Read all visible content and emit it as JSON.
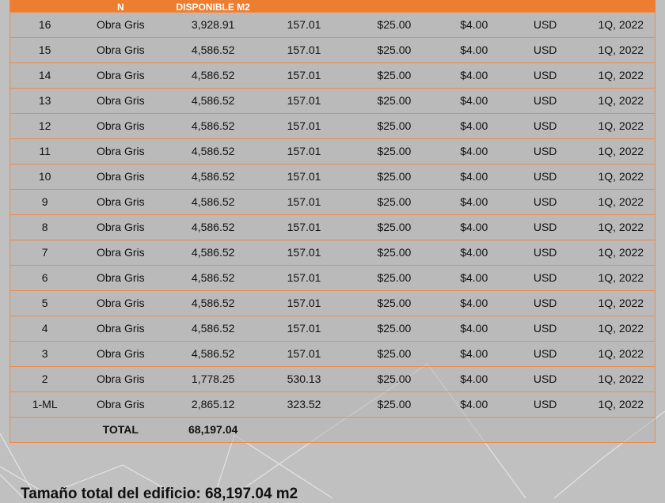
{
  "table": {
    "headers": [
      "",
      "N",
      "DISPONIBLE M2",
      "",
      "",
      "",
      "",
      ""
    ],
    "rows": [
      [
        "16",
        "Obra Gris",
        "3,928.91",
        "157.01",
        "$25.00",
        "$4.00",
        "USD",
        "1Q, 2022"
      ],
      [
        "15",
        "Obra Gris",
        "4,586.52",
        "157.01",
        "$25.00",
        "$4.00",
        "USD",
        "1Q, 2022"
      ],
      [
        "14",
        "Obra Gris",
        "4,586.52",
        "157.01",
        "$25.00",
        "$4.00",
        "USD",
        "1Q, 2022"
      ],
      [
        "13",
        "Obra Gris",
        "4,586.52",
        "157.01",
        "$25.00",
        "$4.00",
        "USD",
        "1Q, 2022"
      ],
      [
        "12",
        "Obra Gris",
        "4,586.52",
        "157.01",
        "$25.00",
        "$4.00",
        "USD",
        "1Q, 2022"
      ],
      [
        "11",
        "Obra Gris",
        "4,586.52",
        "157.01",
        "$25.00",
        "$4.00",
        "USD",
        "1Q, 2022"
      ],
      [
        "10",
        "Obra Gris",
        "4,586.52",
        "157.01",
        "$25.00",
        "$4.00",
        "USD",
        "1Q, 2022"
      ],
      [
        "9",
        "Obra Gris",
        "4,586.52",
        "157.01",
        "$25.00",
        "$4.00",
        "USD",
        "1Q, 2022"
      ],
      [
        "8",
        "Obra Gris",
        "4,586.52",
        "157.01",
        "$25.00",
        "$4.00",
        "USD",
        "1Q, 2022"
      ],
      [
        "7",
        "Obra Gris",
        "4,586.52",
        "157.01",
        "$25.00",
        "$4.00",
        "USD",
        "1Q, 2022"
      ],
      [
        "6",
        "Obra Gris",
        "4,586.52",
        "157.01",
        "$25.00",
        "$4.00",
        "USD",
        "1Q, 2022"
      ],
      [
        "5",
        "Obra Gris",
        "4,586.52",
        "157.01",
        "$25.00",
        "$4.00",
        "USD",
        "1Q, 2022"
      ],
      [
        "4",
        "Obra Gris",
        "4,586.52",
        "157.01",
        "$25.00",
        "$4.00",
        "USD",
        "1Q, 2022"
      ],
      [
        "3",
        "Obra Gris",
        "4,586.52",
        "157.01",
        "$25.00",
        "$4.00",
        "USD",
        "1Q, 2022"
      ],
      [
        "2",
        "Obra Gris",
        "1,778.25",
        "530.13",
        "$25.00",
        "$4.00",
        "USD",
        "1Q, 2022"
      ],
      [
        "1-ML",
        "Obra Gris",
        "2,865.12",
        "323.52",
        "$25.00",
        "$4.00",
        "USD",
        "1Q, 2022"
      ]
    ],
    "total": [
      "",
      "TOTAL",
      "68,197.04",
      "",
      "",
      "",
      "",
      ""
    ]
  },
  "summary": "Tamaño total del edificio: 68,197.04 m2",
  "colors": {
    "header": "#ed7d31",
    "background": "#c0c0c0",
    "border": "#ee8a4a"
  }
}
